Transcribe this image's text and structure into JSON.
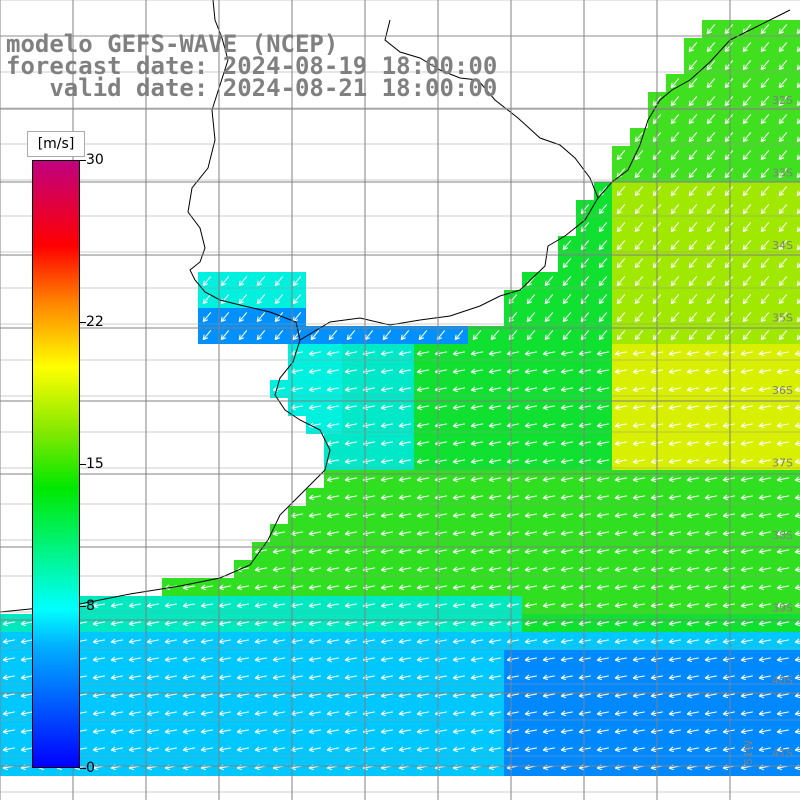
{
  "header": {
    "line1": "modelo GEFS-WAVE (NCEP)",
    "line2": "forecast date: 2024-08-19 18:00:00",
    "line3": "   valid date: 2024-08-21 18:00:00"
  },
  "colorbar": {
    "units": "[m/s]",
    "ticks": [
      "30",
      "22",
      "15",
      "8",
      "0"
    ],
    "tick_values": [
      30,
      22,
      15,
      8,
      0
    ],
    "colors": [
      "#0000ff",
      "#00b0ff",
      "#00ffff",
      "#00e800",
      "#80e800",
      "#ffff00",
      "#ff8000",
      "#ff0000",
      "#c00080"
    ]
  },
  "map": {
    "latitude_labels": [
      "32S",
      "33S",
      "34S",
      "35S",
      "36S",
      "37S",
      "38S",
      "39S",
      "40S",
      "41S"
    ],
    "longitude_label": "51W",
    "wind_direction": "southwest-pointing arrows inland near coast, west-pointing arrows offshore",
    "land_color": "#ffffff",
    "coastline_color": "#000000",
    "grid_color": "#808080"
  }
}
